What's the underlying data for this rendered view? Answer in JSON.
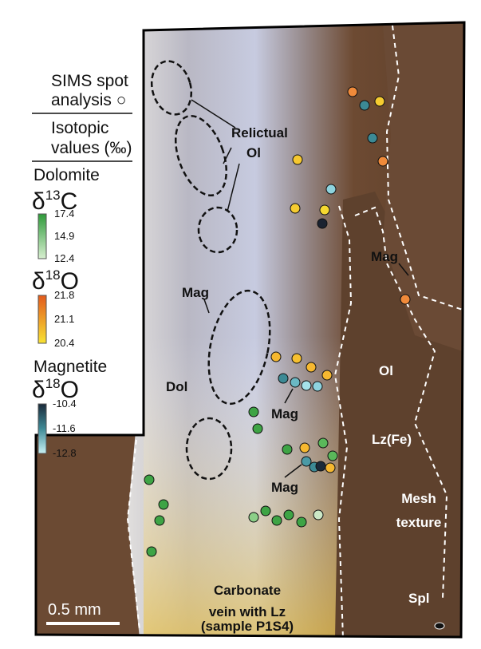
{
  "legend": {
    "spot_line1": "SIMS spot",
    "spot_line2": "analysis ○",
    "values_line1": "Isotopic",
    "values_line2": "values (‰)",
    "groups": [
      {
        "mineral": "Dolomite",
        "delta": "δ",
        "mass": "13",
        "element": "C",
        "ticks": [
          "17.4",
          "14.9",
          "12.4"
        ]
      },
      {
        "delta": "δ",
        "mass": "18",
        "element": "O",
        "ticks": [
          "21.8",
          "21.1",
          "20.4"
        ]
      },
      {
        "mineral": "Magnetite",
        "delta": "δ",
        "mass": "18",
        "element": "O",
        "ticks": [
          "-10.4",
          "-11.6",
          "-12.8"
        ]
      }
    ]
  },
  "annotations": {
    "relictual": "Relictual",
    "ol_top": "Ol",
    "mag_1": "Mag",
    "mag_2": "Mag",
    "mag_3": "Mag",
    "mag_4": "Mag",
    "dol": "Dol",
    "ol_right": "Ol",
    "lz_fe": "Lz(Fe)",
    "mesh_1": "Mesh",
    "mesh_2": "texture",
    "spl": "Spl",
    "vein_1": "Carbonate",
    "vein_2": "vein with Lz",
    "sample": "(sample P1S4)"
  },
  "scale_bar": "0.5 mm"
}
